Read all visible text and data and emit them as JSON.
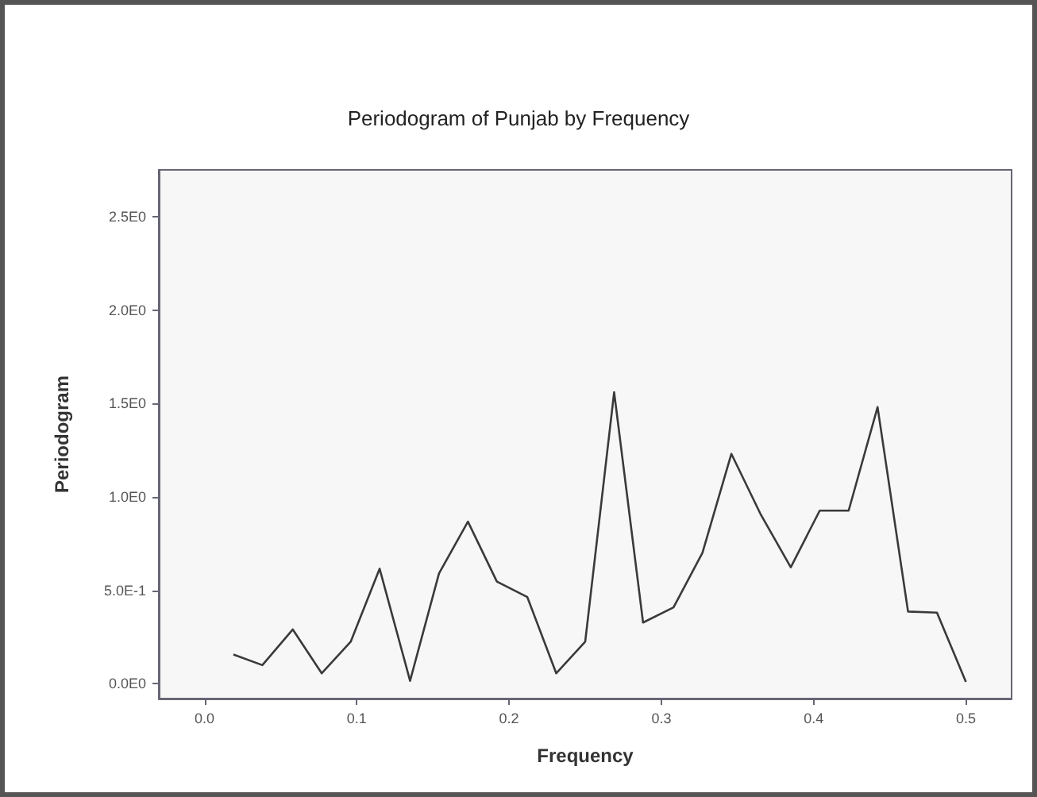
{
  "chart_data": {
    "type": "line",
    "title": "Periodogram of Punjab by Frequency",
    "xlabel": "Frequency",
    "ylabel": "Periodogram",
    "x": [
      0.019,
      0.038,
      0.058,
      0.077,
      0.096,
      0.115,
      0.135,
      0.154,
      0.173,
      0.192,
      0.212,
      0.231,
      0.25,
      0.269,
      0.288,
      0.308,
      0.327,
      0.346,
      0.365,
      0.385,
      0.404,
      0.423,
      0.442,
      0.462,
      0.481,
      0.5
    ],
    "series": [
      {
        "color": "#3a3a3a",
        "values": [
          0.156,
          0.099,
          0.29,
          0.055,
          0.224,
          0.615,
          0.015,
          0.59,
          0.867,
          0.546,
          0.463,
          0.055,
          0.224,
          1.56,
          0.327,
          0.408,
          0.7,
          1.23,
          0.91,
          0.623,
          0.926,
          0.926,
          1.48,
          0.386,
          0.38,
          0.009
        ]
      }
    ],
    "xlim": [
      -0.03,
      0.53
    ],
    "xticks": [
      {
        "value": 0,
        "label": "0.0"
      },
      {
        "value": 0.1,
        "label": "0.1"
      },
      {
        "value": 0.2,
        "label": "0.2"
      },
      {
        "value": 0.3,
        "label": "0.3"
      },
      {
        "value": 0.4,
        "label": "0.4"
      },
      {
        "value": 0.5,
        "label": "0.5"
      }
    ],
    "ylim": [
      -0.08,
      2.75
    ],
    "yticks": [
      {
        "value": 0,
        "label": "0.0E0"
      },
      {
        "value": 0.5,
        "label": "5.0E-1"
      },
      {
        "value": 1,
        "label": "1.0E0"
      },
      {
        "value": 1.5,
        "label": "1.5E0"
      },
      {
        "value": 2,
        "label": "2.0E0"
      },
      {
        "value": 2.5,
        "label": "2.5E0"
      }
    ],
    "marker": "none",
    "line_style": "solid"
  }
}
